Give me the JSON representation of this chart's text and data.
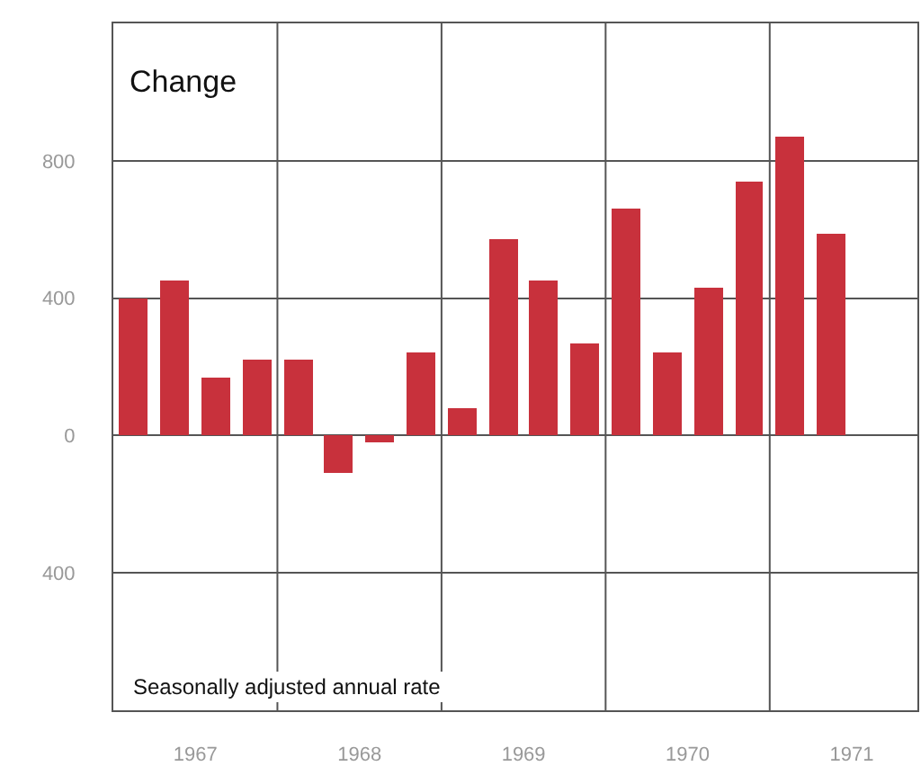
{
  "chart_data": {
    "type": "bar",
    "title": "Change",
    "x": [
      1967.125,
      1967.375,
      1967.625,
      1967.875,
      1968.125,
      1968.375,
      1968.625,
      1968.875,
      1969.125,
      1969.375,
      1969.625,
      1969.875,
      1970.125,
      1970.375,
      1970.625,
      1970.875,
      1971.125,
      1971.375
    ],
    "values": [
      400,
      450,
      170,
      220,
      220,
      -110,
      -20,
      240,
      80,
      570,
      450,
      270,
      660,
      240,
      430,
      740,
      870,
      590
    ],
    "color": "#c8313c",
    "xlim": [
      1967,
      1971.9
    ],
    "xticks": [
      {
        "value": 1967.5,
        "label": "1967"
      },
      {
        "value": 1968,
        "label": null
      },
      {
        "value": 1968.5,
        "label": "1968"
      },
      {
        "value": 1969,
        "label": null
      },
      {
        "value": 1969.5,
        "label": "1969"
      },
      {
        "value": 1970,
        "label": null
      },
      {
        "value": 1970.5,
        "label": "1970"
      },
      {
        "value": 1971,
        "label": null
      },
      {
        "value": 1971.5,
        "label": "1971"
      }
    ],
    "ylim": [
      -800,
      1200
    ],
    "yticks": [
      {
        "value": -400,
        "label": "400"
      },
      0,
      400,
      800
    ],
    "grid": true,
    "annotations": [
      "Seasonally adjusted annual rate"
    ]
  }
}
